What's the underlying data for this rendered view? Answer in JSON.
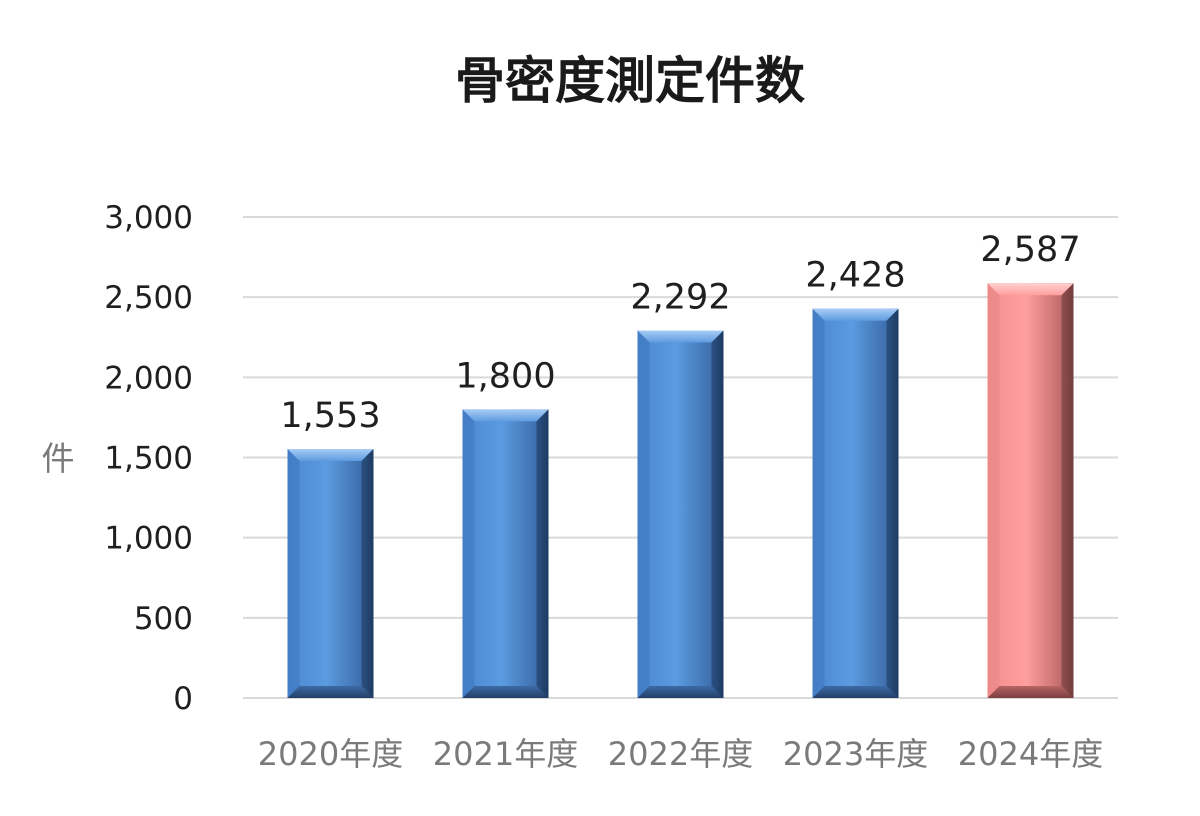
{
  "chart_data": {
    "type": "bar",
    "title": "骨密度測定件数",
    "xlabel": "",
    "ylabel": "件",
    "categories": [
      "2020年度",
      "2021年度",
      "2022年度",
      "2023年度",
      "2024年度"
    ],
    "values": [
      1553,
      1800,
      2292,
      2428,
      2587
    ],
    "value_labels": [
      "1,553",
      "1,800",
      "2,292",
      "2,428",
      "2,587"
    ],
    "ylim": [
      0,
      3000
    ],
    "yticks": [
      0,
      500,
      1000,
      1500,
      2000,
      2500,
      3000
    ],
    "ytick_labels": [
      "0",
      "500",
      "1,000",
      "1,500",
      "2,000",
      "2,500",
      "3,000"
    ],
    "grid": true,
    "legend": "none",
    "colors": {
      "default_bar": "#5b9bd5",
      "highlight_bar": "#ff9999",
      "highlight_category": "2024年度"
    }
  }
}
